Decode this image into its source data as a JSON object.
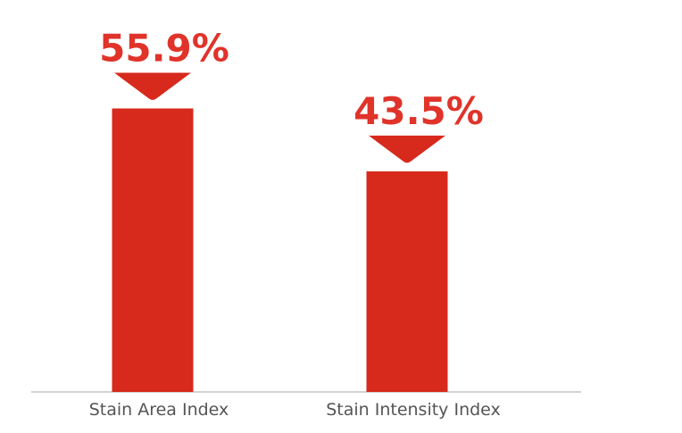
{
  "chart_data": {
    "type": "bar",
    "categories": [
      "Stain Area Index",
      "Stain Intensity Index"
    ],
    "values": [
      55.9,
      43.5
    ],
    "value_labels": [
      "55.9%",
      "43.5%"
    ],
    "title": "",
    "xlabel": "",
    "ylabel": "",
    "ylim": [
      0,
      100
    ],
    "grid": false,
    "legend": "none",
    "colors": {
      "bar": "#d7291c",
      "label": "#e0332a",
      "axis": "#d3d3d3",
      "tick_text": "#555555"
    }
  }
}
